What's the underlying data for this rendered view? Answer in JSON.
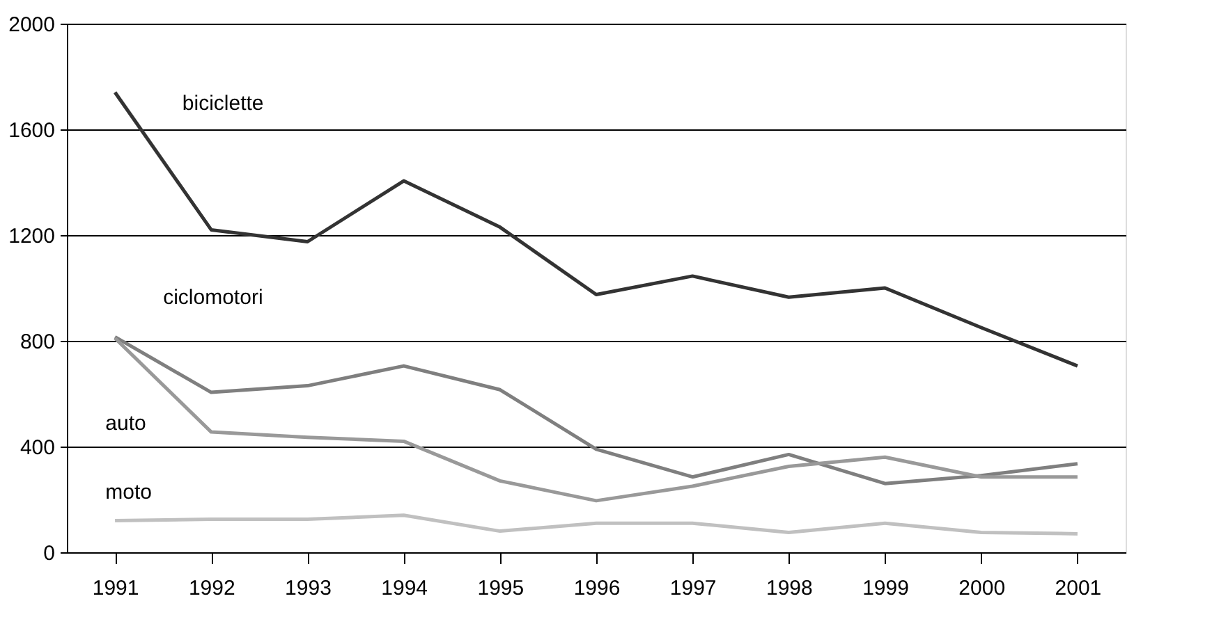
{
  "chart_data": {
    "type": "line",
    "categories": [
      "1991",
      "1992",
      "1993",
      "1994",
      "1995",
      "1996",
      "1997",
      "1998",
      "1999",
      "2000",
      "2001"
    ],
    "series": [
      {
        "name": "biciclette",
        "color": "#333333",
        "values": [
          1740,
          1220,
          1175,
          1405,
          1230,
          975,
          1045,
          965,
          1000,
          850,
          705
        ]
      },
      {
        "name": "ciclomotori",
        "color": "#7f7f7f",
        "values": [
          815,
          605,
          630,
          705,
          615,
          390,
          285,
          370,
          260,
          290,
          335
        ]
      },
      {
        "name": "auto",
        "color": "#999999",
        "values": [
          810,
          455,
          435,
          420,
          270,
          195,
          250,
          325,
          360,
          285,
          285
        ]
      },
      {
        "name": "moto",
        "color": "#c0c0c0",
        "values": [
          120,
          125,
          125,
          140,
          80,
          110,
          110,
          75,
          110,
          75,
          70
        ]
      }
    ],
    "ylim": [
      0,
      2000
    ],
    "yticks": [
      0,
      400,
      800,
      1200,
      1600,
      2000
    ],
    "grid": "y",
    "marker": "none",
    "line_style": "solid"
  }
}
